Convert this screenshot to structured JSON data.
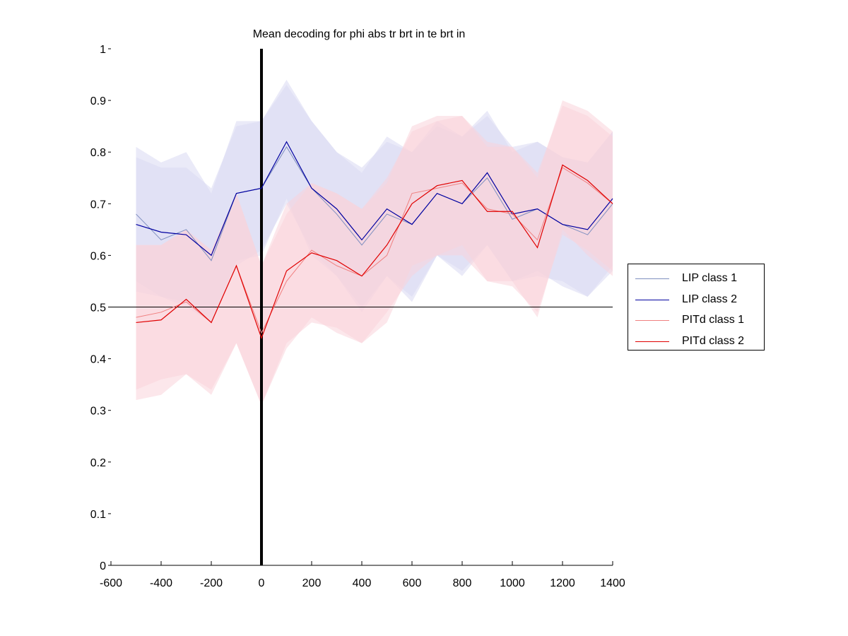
{
  "chart_data": {
    "type": "line",
    "title": "Mean decoding for phi abs tr brt in te brt in",
    "xlabel": "",
    "ylabel": "",
    "xlim": [
      -600,
      1400
    ],
    "ylim": [
      0,
      1
    ],
    "xticks": [
      -600,
      -400,
      -200,
      0,
      200,
      400,
      600,
      800,
      1000,
      1200,
      1400
    ],
    "yticks": [
      0,
      0.1,
      0.2,
      0.3,
      0.4,
      0.5,
      0.6,
      0.7,
      0.8,
      0.9,
      1
    ],
    "ytick_labels": [
      "0",
      "0.1",
      "0.2",
      "0.3",
      "0.4",
      "0.5",
      "0.6",
      "0.7",
      "0.8",
      "0.9",
      "1"
    ],
    "reference_hline": 0.5,
    "reference_vline": 0,
    "legend_position": "right",
    "x": [
      -500,
      -400,
      -300,
      -200,
      -100,
      0,
      100,
      200,
      300,
      400,
      500,
      600,
      700,
      800,
      900,
      1000,
      1100,
      1200,
      1300,
      1400
    ],
    "series": [
      {
        "name": "LIP class 1",
        "color": "#7f8fbf",
        "line_width": 1,
        "values": [
          0.68,
          0.63,
          0.65,
          0.59,
          0.72,
          0.73,
          0.81,
          0.73,
          0.68,
          0.62,
          0.68,
          0.66,
          0.72,
          0.7,
          0.75,
          0.67,
          0.69,
          0.66,
          0.64,
          0.7
        ],
        "band_lower": [
          0.55,
          0.52,
          0.5,
          0.47,
          0.58,
          0.61,
          0.7,
          0.61,
          0.56,
          0.49,
          0.56,
          0.51,
          0.6,
          0.56,
          0.62,
          0.55,
          0.56,
          0.55,
          0.52,
          0.57
        ],
        "band_upper": [
          0.81,
          0.78,
          0.8,
          0.72,
          0.86,
          0.86,
          0.94,
          0.86,
          0.8,
          0.76,
          0.83,
          0.8,
          0.86,
          0.83,
          0.88,
          0.8,
          0.82,
          0.79,
          0.78,
          0.84
        ],
        "band_color": "#d8d8f2"
      },
      {
        "name": "LIP class 2",
        "color": "#0000a0",
        "line_width": 1.2,
        "values": [
          0.66,
          0.645,
          0.64,
          0.6,
          0.72,
          0.73,
          0.82,
          0.73,
          0.69,
          0.63,
          0.69,
          0.66,
          0.72,
          0.7,
          0.76,
          0.68,
          0.69,
          0.66,
          0.65,
          0.71
        ],
        "band_lower": [
          0.53,
          0.52,
          0.51,
          0.47,
          0.59,
          0.6,
          0.71,
          0.6,
          0.56,
          0.5,
          0.56,
          0.52,
          0.6,
          0.57,
          0.62,
          0.55,
          0.57,
          0.54,
          0.52,
          0.58
        ],
        "band_upper": [
          0.79,
          0.77,
          0.77,
          0.73,
          0.85,
          0.86,
          0.93,
          0.86,
          0.8,
          0.77,
          0.82,
          0.8,
          0.85,
          0.83,
          0.87,
          0.81,
          0.82,
          0.79,
          0.78,
          0.84
        ],
        "band_color": "#d8d8f2"
      },
      {
        "name": "PITd class 1",
        "color": "#f08080",
        "line_width": 1,
        "values": [
          0.48,
          0.49,
          0.51,
          0.47,
          0.58,
          0.45,
          0.55,
          0.61,
          0.58,
          0.56,
          0.6,
          0.72,
          0.73,
          0.74,
          0.69,
          0.68,
          0.63,
          0.77,
          0.74,
          0.7
        ],
        "band_lower": [
          0.34,
          0.36,
          0.37,
          0.34,
          0.43,
          0.31,
          0.42,
          0.48,
          0.45,
          0.43,
          0.47,
          0.58,
          0.6,
          0.6,
          0.55,
          0.54,
          0.49,
          0.64,
          0.61,
          0.57
        ],
        "band_upper": [
          0.62,
          0.62,
          0.65,
          0.61,
          0.72,
          0.58,
          0.68,
          0.74,
          0.72,
          0.69,
          0.74,
          0.85,
          0.87,
          0.87,
          0.82,
          0.81,
          0.76,
          0.89,
          0.87,
          0.83
        ],
        "band_color": "#fad4da"
      },
      {
        "name": "PITd class 2",
        "color": "#e00000",
        "line_width": 1.2,
        "values": [
          0.47,
          0.475,
          0.515,
          0.47,
          0.58,
          0.44,
          0.57,
          0.605,
          0.59,
          0.56,
          0.62,
          0.7,
          0.735,
          0.745,
          0.685,
          0.685,
          0.615,
          0.775,
          0.745,
          0.7
        ],
        "band_lower": [
          0.32,
          0.33,
          0.37,
          0.33,
          0.43,
          0.31,
          0.43,
          0.47,
          0.46,
          0.43,
          0.49,
          0.56,
          0.6,
          0.62,
          0.55,
          0.55,
          0.48,
          0.65,
          0.6,
          0.56
        ],
        "band_upper": [
          0.62,
          0.62,
          0.65,
          0.61,
          0.72,
          0.58,
          0.7,
          0.74,
          0.72,
          0.69,
          0.75,
          0.84,
          0.86,
          0.87,
          0.81,
          0.81,
          0.75,
          0.9,
          0.88,
          0.84
        ],
        "band_color": "#fad4da"
      }
    ]
  }
}
